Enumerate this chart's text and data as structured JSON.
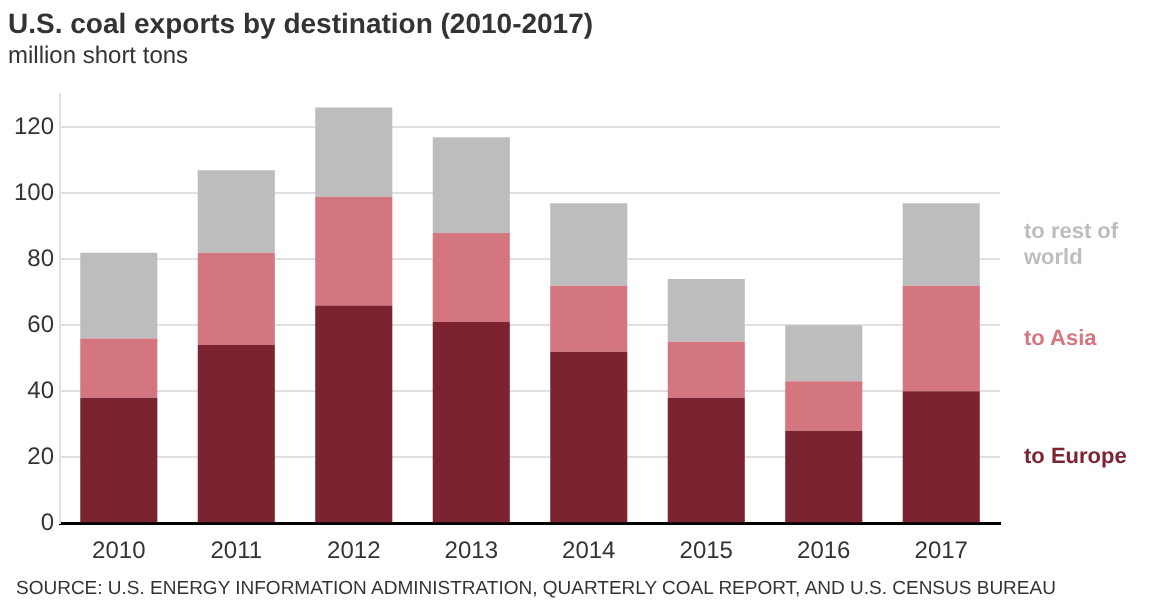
{
  "chart_data": {
    "type": "bar",
    "title": "U.S. coal exports by destination (2010-2017)",
    "subtitle": "million short tons",
    "categories": [
      "2010",
      "2011",
      "2012",
      "2013",
      "2014",
      "2015",
      "2016",
      "2017"
    ],
    "stacked": true,
    "series": [
      {
        "name": "to Europe",
        "color": "#7b2331",
        "values": [
          38,
          54,
          66,
          61,
          52,
          38,
          28,
          40
        ]
      },
      {
        "name": "to Asia",
        "color": "#d47680",
        "values": [
          18,
          28,
          33,
          27,
          20,
          17,
          15,
          32
        ]
      },
      {
        "name": "to rest of world",
        "color": "#bdbdbd",
        "values": [
          26,
          25,
          27,
          29,
          25,
          19,
          17,
          25
        ]
      }
    ],
    "ylim": [
      0,
      130
    ],
    "yticks": [
      0,
      20,
      40,
      60,
      80,
      100,
      120
    ],
    "grid": "y",
    "legend": "right",
    "annotations": [
      "SOURCE: U.S. ENERGY INFORMATION ADMINISTRATION, QUARTERLY COAL REPORT, AND U.S. CENSUS BUREAU"
    ]
  }
}
